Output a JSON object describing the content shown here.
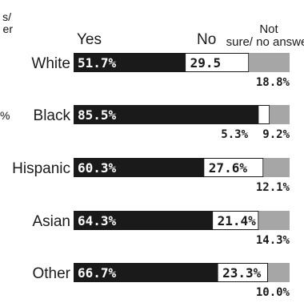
{
  "chart_data": {
    "type": "bar",
    "stacked": true,
    "orientation": "horizontal",
    "legend": [
      "Yes",
      "No",
      "Not sure/ no answer"
    ],
    "legend_placement": "top",
    "categories": [
      "White",
      "Black",
      "Hispanic",
      "Asian",
      "Other"
    ],
    "series": [
      {
        "name": "Yes",
        "values": [
          51.7,
          85.5,
          60.3,
          64.3,
          66.7
        ],
        "labels": [
          "51.7%",
          "85.5%",
          "60.3%",
          "64.3%",
          "66.7%"
        ],
        "color": "#1a1a1a"
      },
      {
        "name": "No",
        "values": [
          29.5,
          5.3,
          27.6,
          21.4,
          23.3
        ],
        "labels": [
          "29.5",
          "5.3%",
          "27.6%",
          "21.4%",
          "23.3%"
        ],
        "color": "#ffffff"
      },
      {
        "name": "Not sure/ no answer",
        "values": [
          18.8,
          9.2,
          12.1,
          14.3,
          10.0
        ],
        "labels": [
          "18.8%",
          "9.2%",
          "12.1%",
          "14.3%",
          "10.0%"
        ],
        "color": "#a6a6a6"
      }
    ]
  },
  "clipped": {
    "left_fragment_1": "s/",
    "left_fragment_2": "er",
    "left_fragment_3": "%"
  }
}
